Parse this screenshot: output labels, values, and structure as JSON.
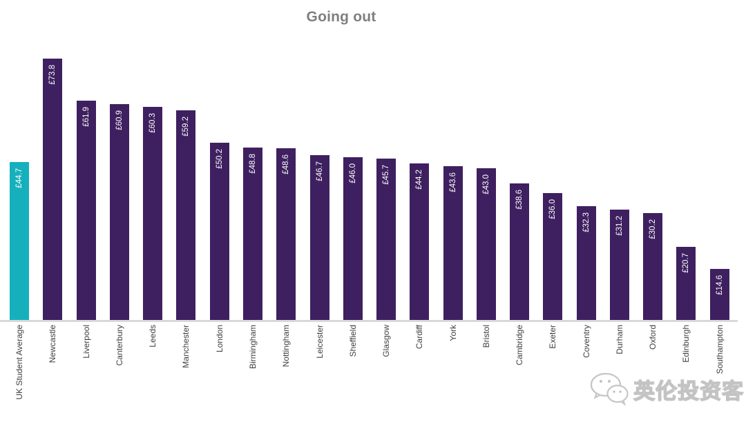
{
  "chart_data": {
    "type": "bar",
    "title": "Going out",
    "categories": [
      "UK Student Average",
      "Newcastle",
      "Liverpool",
      "Canterbury",
      "Leeds",
      "Manchester",
      "London",
      "Birmingham",
      "Nottingham",
      "Leicester",
      "Sheffield",
      "Glasgow",
      "Cardiff",
      "York",
      "Bristol",
      "Cambridge",
      "Exeter",
      "Coventry",
      "Durham",
      "Oxford",
      "Edinburgh",
      "Southampton"
    ],
    "values": [
      44.7,
      73.8,
      61.9,
      60.9,
      60.3,
      59.2,
      50.2,
      48.8,
      48.6,
      46.7,
      46.0,
      45.7,
      44.2,
      43.6,
      43.0,
      38.6,
      36.0,
      32.3,
      31.2,
      30.2,
      20.7,
      14.6
    ],
    "value_labels": [
      "£44.7",
      "£73.8",
      "£61.9",
      "£60.9",
      "£60.3",
      "£59.2",
      "£50.2",
      "£48.8",
      "£48.6",
      "£46.7",
      "£46.0",
      "£45.7",
      "£44.2",
      "£43.6",
      "£43.0",
      "£38.6",
      "£36.0",
      "£32.3",
      "£31.2",
      "£30.2",
      "£20.7",
      "£14.6"
    ],
    "highlight_index": 0,
    "currency": "£",
    "ylim": [
      0,
      76
    ],
    "grid": false,
    "legend_position": "none",
    "colors": {
      "bar": "#3e2060",
      "highlight_bar": "#16b0bc",
      "value_label": "#ffffff",
      "category_label": "#404040",
      "title": "#7f7f7f",
      "axis_line": "#d9d9d9"
    }
  },
  "watermark": {
    "icon": "wechat-icon",
    "text": "英伦投资客"
  }
}
